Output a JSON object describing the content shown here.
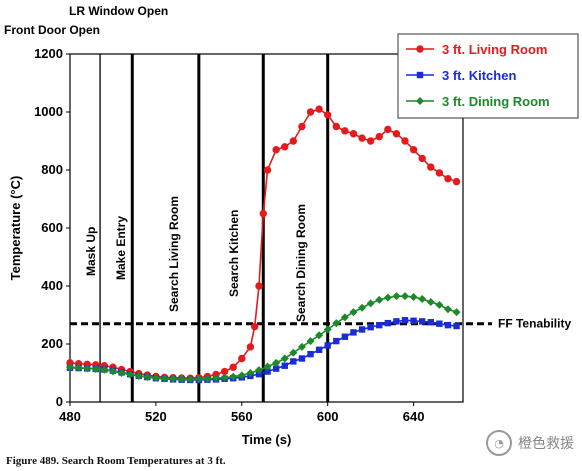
{
  "chart_data": {
    "type": "line",
    "title": "",
    "xlabel": "Time (s)",
    "ylabel": "Temperature (°C)",
    "xlim": [
      480,
      663
    ],
    "ylim": [
      0,
      1200
    ],
    "x_ticks": [
      480,
      520,
      560,
      600,
      640
    ],
    "y_ticks": [
      0,
      200,
      400,
      600,
      800,
      1000,
      1200
    ],
    "grid": false,
    "legend_position": "top-right",
    "series": [
      {
        "name": "3 ft. Living Room",
        "color": "#e41a1c",
        "marker": "circle",
        "x": [
          480,
          484,
          488,
          492,
          496,
          500,
          504,
          508,
          512,
          516,
          520,
          524,
          528,
          532,
          536,
          540,
          544,
          548,
          552,
          556,
          560,
          564,
          566,
          568,
          570,
          572,
          576,
          580,
          584,
          588,
          592,
          596,
          600,
          604,
          608,
          612,
          616,
          620,
          624,
          628,
          632,
          636,
          640,
          644,
          648,
          652,
          656,
          660
        ],
        "y": [
          135,
          132,
          130,
          128,
          125,
          120,
          112,
          105,
          98,
          93,
          88,
          85,
          84,
          83,
          82,
          84,
          88,
          95,
          105,
          120,
          150,
          190,
          260,
          400,
          650,
          800,
          870,
          880,
          900,
          950,
          1000,
          1010,
          990,
          950,
          935,
          925,
          910,
          900,
          915,
          940,
          925,
          900,
          870,
          840,
          810,
          790,
          770,
          760
        ]
      },
      {
        "name": "3 ft. Kitchen",
        "color": "#1a2cd6",
        "marker": "square",
        "x": [
          480,
          484,
          488,
          492,
          496,
          500,
          504,
          508,
          512,
          516,
          520,
          524,
          528,
          532,
          536,
          540,
          544,
          548,
          552,
          556,
          560,
          564,
          568,
          572,
          576,
          580,
          584,
          588,
          592,
          596,
          600,
          604,
          608,
          612,
          616,
          620,
          624,
          628,
          632,
          636,
          640,
          644,
          648,
          652,
          656,
          660
        ],
        "y": [
          118,
          117,
          116,
          114,
          112,
          108,
          102,
          96,
          90,
          86,
          82,
          80,
          78,
          77,
          76,
          76,
          77,
          78,
          80,
          82,
          85,
          90,
          96,
          105,
          115,
          125,
          140,
          150,
          165,
          180,
          195,
          210,
          225,
          240,
          250,
          258,
          265,
          272,
          278,
          282,
          280,
          278,
          275,
          270,
          265,
          262
        ]
      },
      {
        "name": "3 ft. Dining Room",
        "color": "#1d8a2a",
        "marker": "diamond",
        "x": [
          480,
          484,
          488,
          492,
          496,
          500,
          504,
          508,
          512,
          516,
          520,
          524,
          528,
          532,
          536,
          540,
          544,
          548,
          552,
          556,
          560,
          564,
          568,
          572,
          576,
          580,
          584,
          588,
          592,
          596,
          600,
          604,
          608,
          612,
          616,
          620,
          624,
          628,
          632,
          636,
          640,
          644,
          648,
          652,
          656,
          660
        ],
        "y": [
          120,
          118,
          116,
          114,
          111,
          106,
          100,
          95,
          90,
          86,
          83,
          81,
          80,
          79,
          78,
          79,
          80,
          82,
          84,
          87,
          92,
          100,
          110,
          122,
          135,
          150,
          170,
          190,
          210,
          230,
          250,
          272,
          292,
          310,
          325,
          340,
          352,
          360,
          365,
          365,
          362,
          355,
          345,
          335,
          320,
          310
        ]
      }
    ],
    "reference_lines": [
      {
        "label": "FF Tenability",
        "y": 270,
        "style": "dashed"
      }
    ],
    "event_lines": [
      {
        "label": "LR Window Open",
        "x": 509
      },
      {
        "label": "Front Door Open",
        "x": 509
      },
      {
        "label": "Mask Up",
        "x": 484
      },
      {
        "label": "Make Entry",
        "x": 496
      },
      {
        "label": "Search Living Room",
        "x": 524
      },
      {
        "label": "Search Kitchen",
        "x": 560
      },
      {
        "label": "Search Dining Room",
        "x": 580
      }
    ],
    "vertical_markers": [
      {
        "x": 494,
        "style": "thin"
      },
      {
        "x": 509,
        "style": "thick"
      },
      {
        "x": 540,
        "style": "thick"
      },
      {
        "x": 570,
        "style": "thick"
      },
      {
        "x": 600,
        "style": "thick"
      }
    ]
  },
  "caption": "Figure 489.  Search Room Temperatures at 3 ft.",
  "watermark": {
    "text": "橙色救援"
  }
}
